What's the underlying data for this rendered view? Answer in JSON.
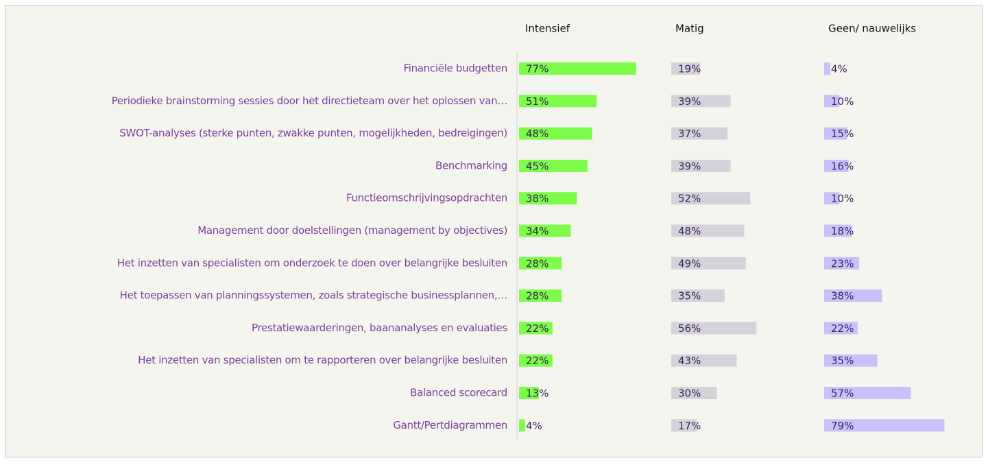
{
  "chart_data": {
    "type": "bar",
    "orientation": "horizontal",
    "categories": [
      "Financiële budgetten",
      "Periodieke brainstorming sessies door het directieteam over het oplossen van…",
      "SWOT-analyses (sterke punten, zwakke punten, mogelijkheden, bedreigingen)",
      "Benchmarking",
      "Functieomschrijvingsopdrachten",
      "Management door doelstellingen (management by objectives)",
      "Het inzetten van specialisten om onderzoek te doen over belangrijke besluiten",
      "Het toepassen van planningssystemen, zoals strategische businessplannen,…",
      "Prestatiewaarderingen, baananalyses en evaluaties",
      "Het inzetten van specialisten om te rapporteren over belangrijke besluiten",
      "Balanced scorecard",
      "Gantt/Pertdiagrammen"
    ],
    "series": [
      {
        "name": "Intensief",
        "color": "#7dfc4a",
        "values": [
          77,
          51,
          48,
          45,
          38,
          34,
          28,
          28,
          22,
          22,
          13,
          4
        ],
        "value_labels": [
          "77%",
          "51%",
          "48%",
          "45%",
          "38%",
          "34%",
          "28%",
          "28%",
          "22%",
          "22%",
          "13%",
          "4%"
        ]
      },
      {
        "name": "Matig",
        "color": "#d4d3d9",
        "values": [
          19,
          39,
          37,
          39,
          52,
          48,
          49,
          35,
          56,
          43,
          30,
          17
        ],
        "value_labels": [
          "19%",
          "39%",
          "37%",
          "39%",
          "52%",
          "48%",
          "49%",
          "35%",
          "56%",
          "43%",
          "30%",
          "17%"
        ]
      },
      {
        "name": "Geen/ nauwelijks",
        "color": "#c9c2fa",
        "values": [
          4,
          10,
          15,
          16,
          10,
          18,
          23,
          38,
          22,
          35,
          57,
          79
        ],
        "value_labels": [
          "4%",
          "10%",
          "15%",
          "16%",
          "10%",
          "18%",
          "23%",
          "38%",
          "22%",
          "35%",
          "57%",
          "79%"
        ]
      }
    ]
  }
}
